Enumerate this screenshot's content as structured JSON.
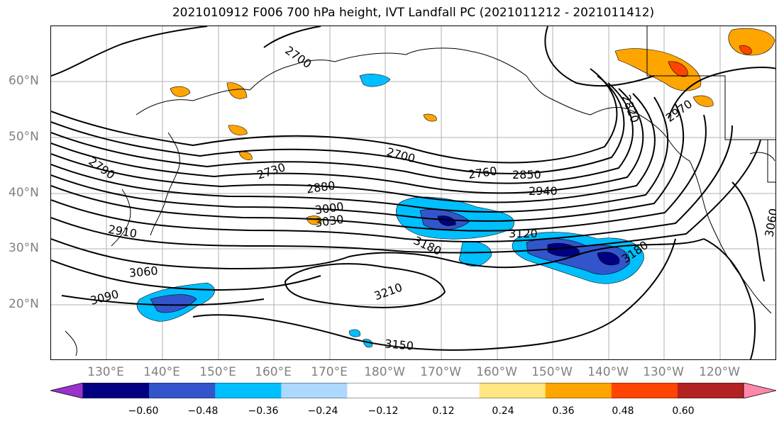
{
  "title": "2021010912 F006 700 hPa height, IVT Landfall PC (2021011212 - 2021011412)",
  "lat_labels": [
    "60°N",
    "50°N",
    "40°N",
    "30°N",
    "20°N"
  ],
  "lon_labels": [
    "130°E",
    "140°E",
    "150°E",
    "160°E",
    "170°E",
    "180°W",
    "170°W",
    "160°W",
    "150°W",
    "140°W",
    "130°W",
    "120°W"
  ],
  "contour_labels": [
    "2700",
    "2730",
    "2760",
    "2790",
    "2820",
    "2850",
    "2880",
    "2910",
    "2940",
    "2970",
    "3000",
    "3030",
    "3060",
    "3060",
    "3090",
    "3120",
    "3150",
    "3180",
    "3180",
    "3210"
  ],
  "colorbar": {
    "colors": [
      "#9933cc",
      "#000080",
      "#3355cc",
      "#00bfff",
      "#add8ff",
      "#ffffff",
      "#ffffff",
      "#ffe680",
      "#ffa500",
      "#ff4500",
      "#b22222",
      "#ff88aa"
    ],
    "tick_labels": [
      "−0.60",
      "−0.48",
      "−0.36",
      "−0.24",
      "−0.12",
      "0.12",
      "0.24",
      "0.36",
      "0.48",
      "0.60"
    ]
  }
}
